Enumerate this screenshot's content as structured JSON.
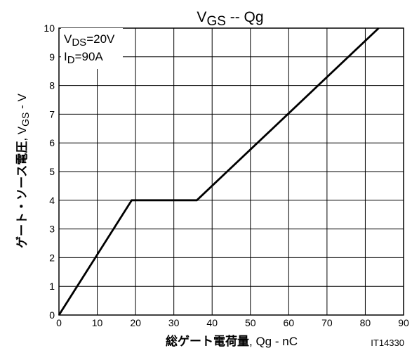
{
  "chart_data": {
    "type": "line",
    "title_main": "V",
    "title_sub": "GS",
    "title_rest": " -- Qg",
    "xlabel_main": "総ゲート電荷量",
    "xlabel_rest": ", Qg - nC",
    "ylabel_main": "ゲート・ソース電圧",
    "ylabel_pre": ", V",
    "ylabel_sub": "GS",
    "ylabel_rest": " - V",
    "xlim": [
      0,
      90
    ],
    "ylim": [
      0,
      10
    ],
    "xticks": [
      0,
      10,
      20,
      30,
      40,
      50,
      60,
      70,
      80,
      90
    ],
    "yticks": [
      0,
      1,
      2,
      3,
      4,
      5,
      6,
      7,
      8,
      9,
      10
    ],
    "grid": true,
    "series": [
      {
        "x": [
          0,
          19,
          36,
          83.5
        ],
        "y": [
          0,
          4,
          4,
          10
        ]
      }
    ],
    "annotations": [
      {
        "main": "V",
        "sub": "DS",
        "rest": "=20V"
      },
      {
        "main": "I",
        "sub": "D",
        "rest": "=90A"
      }
    ],
    "figure_id": "IT14330"
  }
}
